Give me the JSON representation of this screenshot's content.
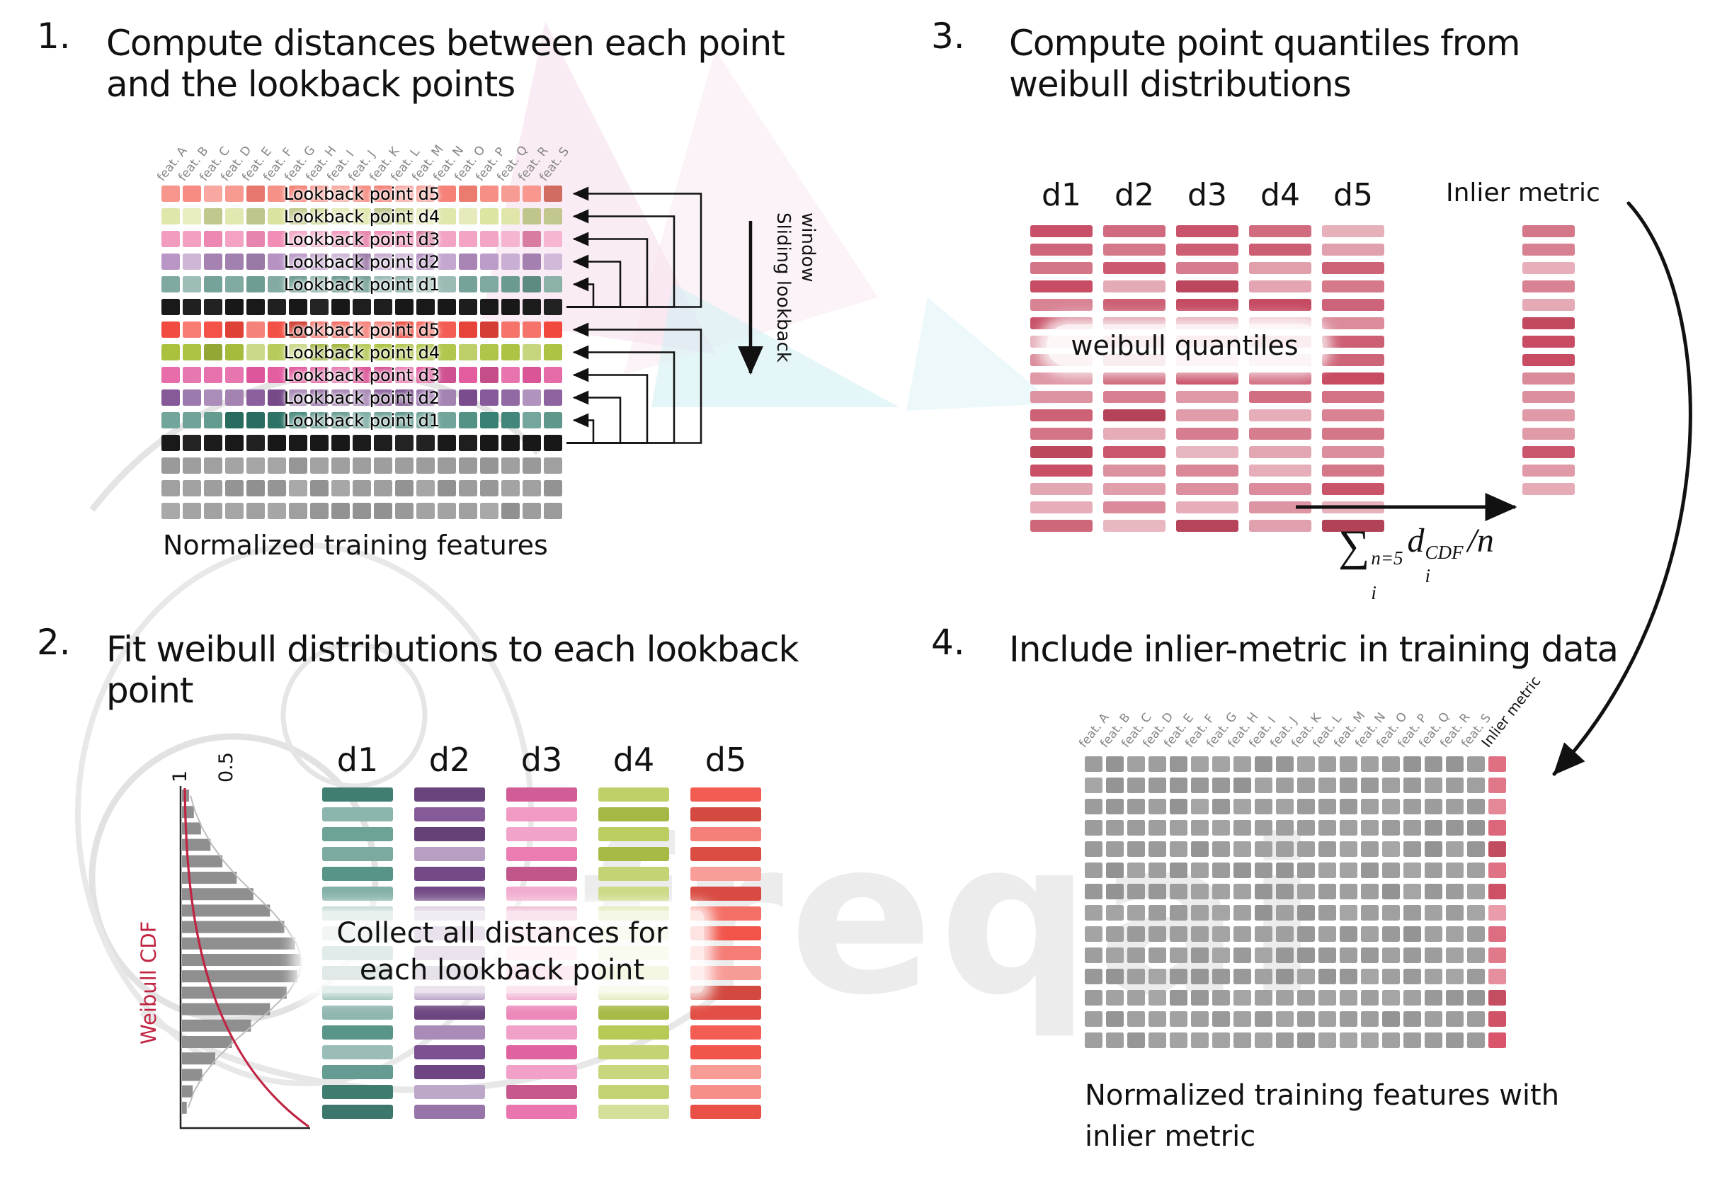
{
  "watermark": {
    "text": "freqai"
  },
  "panel1": {
    "number": "1.",
    "title": "Compute distances between each point and the lookback points",
    "features": [
      "feat. A",
      "feat. B",
      "feat. C",
      "feat. D",
      "feat. E",
      "feat. F",
      "feat. G",
      "feat. H",
      "feat. I",
      "feat. J",
      "feat. K",
      "feat. L",
      "feat. M",
      "feat. N",
      "feat. O",
      "feat. P",
      "feat. Q",
      "feat. R",
      "feat. S"
    ],
    "groups": [
      {
        "rows": [
          {
            "label": "Lookback point d5",
            "color": "#f57f74"
          },
          {
            "label": "Lookback point d4",
            "color": "#dde3a0"
          },
          {
            "label": "Lookback point d3",
            "color": "#f08ab4"
          },
          {
            "label": "Lookback point d2",
            "color": "#b28cc0"
          },
          {
            "label": "Lookback point d1",
            "color": "#68998f"
          }
        ]
      },
      {
        "rows": [
          {
            "label": "Lookback point d5",
            "color": "#f2473c"
          },
          {
            "label": "Lookback point d4",
            "color": "#a9c13d"
          },
          {
            "label": "Lookback point d3",
            "color": "#e2589e"
          },
          {
            "label": "Lookback point d2",
            "color": "#7e4f93"
          },
          {
            "label": "Lookback point d1",
            "color": "#2f7a6c"
          }
        ]
      }
    ],
    "black_row_color": "#191919",
    "gray_row_color": "#9c9c9c",
    "gray_rows": 3,
    "sliding_label": "Sliding lookback window",
    "caption": "Normalized training features"
  },
  "panel2": {
    "number": "2.",
    "title": "Fit weibull distributions to each lookback point",
    "plot": {
      "ylabel": "Weibull CDF",
      "tick_1": "1",
      "tick_05": "0.5",
      "curve_color": "#c02442",
      "hist": [
        0.06,
        0.1,
        0.16,
        0.24,
        0.34,
        0.46,
        0.6,
        0.74,
        0.86,
        0.95,
        1.0,
        0.97,
        0.88,
        0.74,
        0.58,
        0.42,
        0.28,
        0.17,
        0.09,
        0.04
      ]
    },
    "columns": [
      {
        "name": "d1",
        "color": "#47897c"
      },
      {
        "name": "d2",
        "color": "#7b4f91"
      },
      {
        "name": "d3",
        "color": "#e867a6"
      },
      {
        "name": "d4",
        "color": "#b3c64b"
      },
      {
        "name": "d5",
        "color": "#f2544a"
      }
    ],
    "overlay": "Collect all distances for each lookback point"
  },
  "panel3": {
    "number": "3.",
    "title": "Compute point quantiles from weibull distributions",
    "columns": [
      "d1",
      "d2",
      "d3",
      "d4",
      "d5"
    ],
    "bar_color": "#c64a62",
    "overlay": "weibull quantiles",
    "inlier_label": "Inlier metric",
    "formula": {
      "sigma": "∑",
      "sup": "n=5",
      "sub": "i",
      "d": "d",
      "dsup": "CDF",
      "dsub": "i",
      "slash": "/n"
    }
  },
  "panel4": {
    "number": "4.",
    "title": "Include inlier-metric in training data",
    "features": [
      "feat. A",
      "feat. B",
      "feat. C",
      "feat. D",
      "feat. E",
      "feat. F",
      "feat. G",
      "feat. H",
      "feat. I",
      "feat. J",
      "feat. K",
      "feat. L",
      "feat. M",
      "feat. N",
      "feat. O",
      "feat. P",
      "feat. Q",
      "feat. R",
      "feat. S"
    ],
    "inlier_label": "Inlier metric",
    "cell_color": "#9c9c9c",
    "inlier_color": "#d8556b",
    "caption": "Normalized training features with inlier metric"
  }
}
